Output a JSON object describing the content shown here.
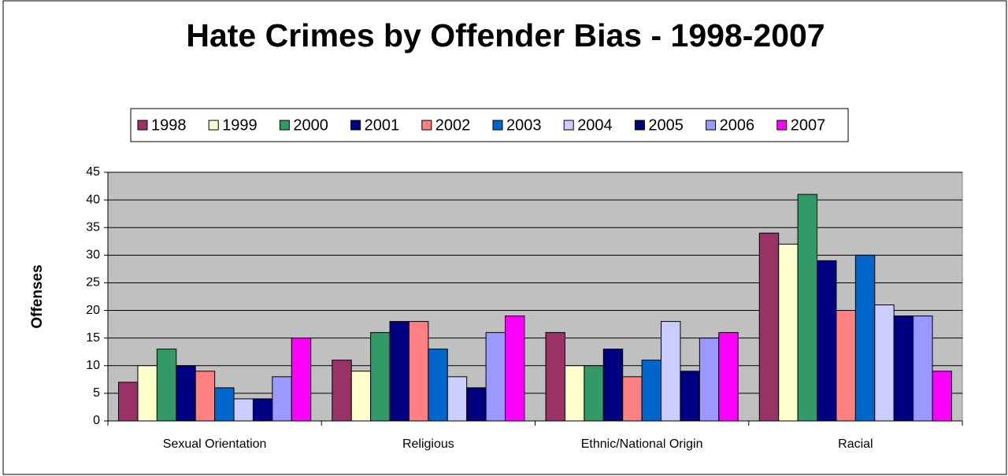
{
  "chart_data": {
    "type": "bar",
    "title": "Hate Crimes by Offender Bias - 1998-2007",
    "y_label": "Offenses",
    "categories": [
      "Sexual Orientation",
      "Religious",
      "Ethnic/National Origin",
      "Racial"
    ],
    "series": [
      {
        "name": "1998",
        "color": "#993366",
        "values": [
          7,
          11,
          16,
          34
        ]
      },
      {
        "name": "1999",
        "color": "#FFFFCC",
        "values": [
          10,
          9,
          10,
          32
        ]
      },
      {
        "name": "2000",
        "color": "#339966",
        "values": [
          13,
          16,
          10,
          41
        ]
      },
      {
        "name": "2001",
        "color": "#000080",
        "values": [
          10,
          18,
          13,
          29
        ]
      },
      {
        "name": "2002",
        "color": "#FF8080",
        "values": [
          9,
          18,
          8,
          20
        ]
      },
      {
        "name": "2003",
        "color": "#0066CC",
        "values": [
          6,
          13,
          11,
          30
        ]
      },
      {
        "name": "2004",
        "color": "#CCCCFF",
        "values": [
          4,
          8,
          18,
          21
        ]
      },
      {
        "name": "2005",
        "color": "#000080",
        "values": [
          4,
          6,
          9,
          19
        ]
      },
      {
        "name": "2006",
        "color": "#9999FF",
        "values": [
          8,
          16,
          15,
          19
        ]
      },
      {
        "name": "2007",
        "color": "#FF00FF",
        "values": [
          15,
          19,
          16,
          9
        ]
      }
    ],
    "ylim": [
      0,
      45
    ],
    "yticks": [
      0,
      5,
      10,
      15,
      20,
      25,
      30,
      35,
      40,
      45
    ],
    "grid": true,
    "legend": "top"
  }
}
